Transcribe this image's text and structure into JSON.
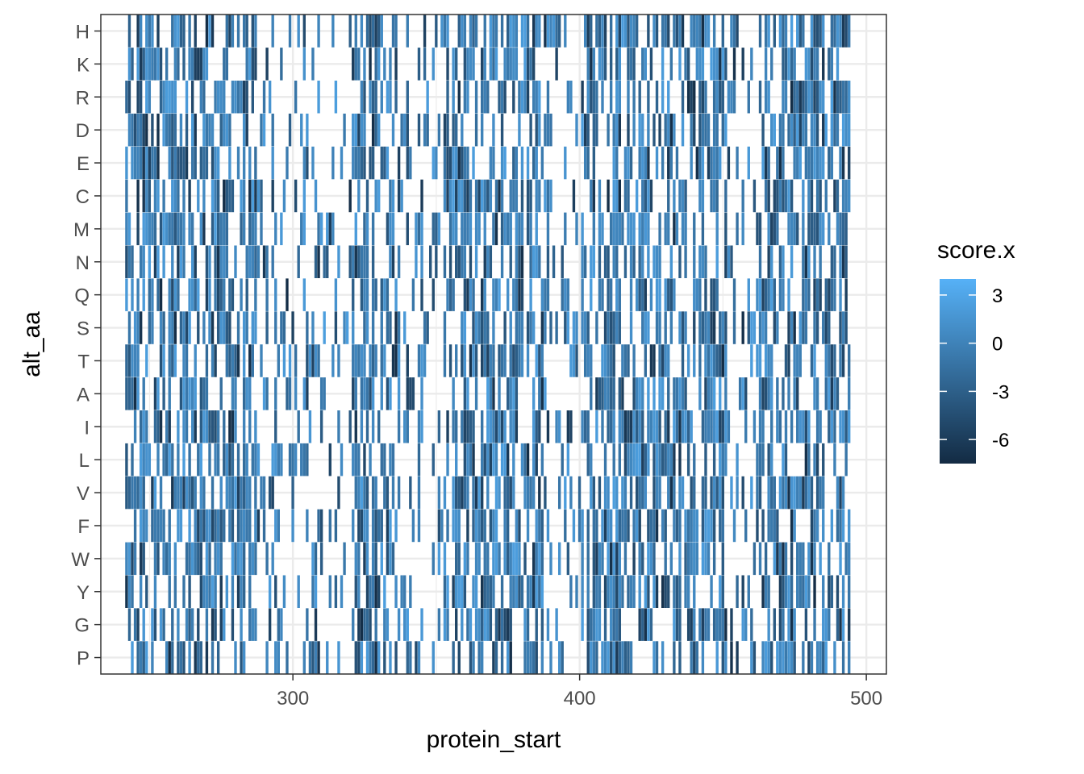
{
  "chart_data": {
    "type": "heatmap",
    "title": "",
    "xlabel": "protein_start",
    "ylabel": "alt_aa",
    "xlim": [
      233,
      507
    ],
    "x_ticks": [
      300,
      400,
      500
    ],
    "x_tick_labels": [
      "300",
      "400",
      "500"
    ],
    "x_range_data": [
      242,
      494
    ],
    "categories": [
      "H",
      "K",
      "R",
      "D",
      "E",
      "C",
      "M",
      "N",
      "Q",
      "S",
      "T",
      "A",
      "I",
      "L",
      "V",
      "F",
      "W",
      "Y",
      "G",
      "P"
    ],
    "value_name": "score.x",
    "color_scale": {
      "low": "#132b43",
      "high": "#56b1f7",
      "min": -7.5,
      "max": 4.0,
      "breaks": [
        3,
        0,
        -3,
        -6
      ],
      "break_labels": [
        "3",
        "0",
        "-3",
        "-6"
      ]
    },
    "grid": true,
    "legend_position": "right",
    "panel_background": "#ffffff",
    "grid_color": "#ebebeb",
    "border_color": "#333333"
  }
}
